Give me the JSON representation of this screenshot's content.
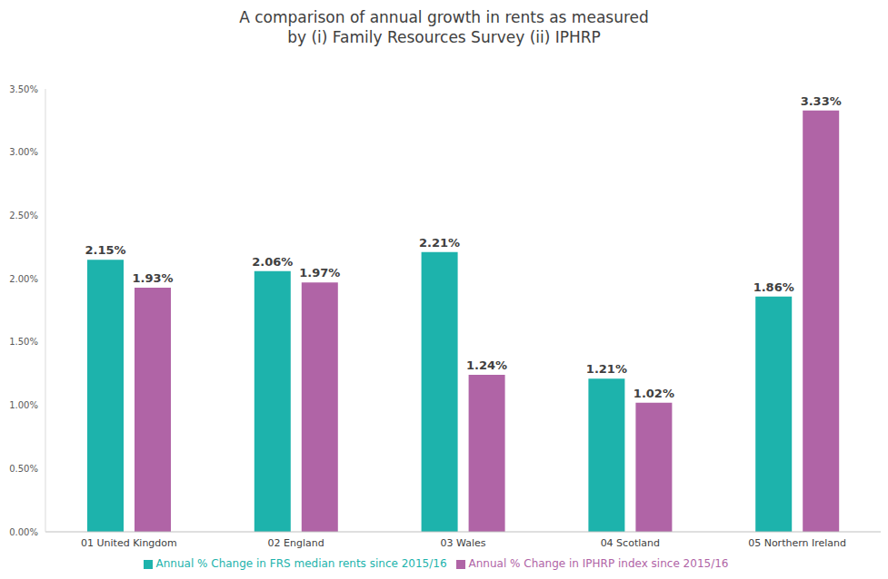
{
  "chart_data": {
    "type": "bar",
    "title": "A comparison of annual growth in rents as measured\nby (i) Family Resources Survey (ii) IPHRP",
    "categories": [
      "01 United Kingdom",
      "02 England",
      "03 Wales",
      "04 Scotland",
      "05 Northern Ireland"
    ],
    "series": [
      {
        "name": "Annual % Change in FRS median rents since 2015/16",
        "color": "#1DB3AC",
        "values": [
          2.15,
          2.06,
          2.21,
          1.21,
          1.86
        ],
        "value_labels": [
          "2.15%",
          "2.06%",
          "2.21%",
          "1.21%",
          "1.86%"
        ]
      },
      {
        "name": "Annual % Change in IPHRP index since 2015/16",
        "color": "#B064A6",
        "values": [
          1.93,
          1.97,
          1.24,
          1.02,
          3.33
        ],
        "value_labels": [
          "1.93%",
          "1.97%",
          "1.24%",
          "1.02%",
          "3.33%"
        ]
      }
    ],
    "ylim": [
      0,
      3.5
    ],
    "yticks": [
      {
        "value": 0,
        "label": "0.00%"
      },
      {
        "value": 0.5,
        "label": "0.50%"
      },
      {
        "value": 1,
        "label": "1.00%"
      },
      {
        "value": 1.5,
        "label": "1.50%"
      },
      {
        "value": 2,
        "label": "2.00%"
      },
      {
        "value": 2.5,
        "label": "2.50%"
      },
      {
        "value": 3,
        "label": "3.00%"
      },
      {
        "value": 3.5,
        "label": "3.50%"
      }
    ],
    "grid": false,
    "legend": "bottom",
    "data_labels": true
  }
}
